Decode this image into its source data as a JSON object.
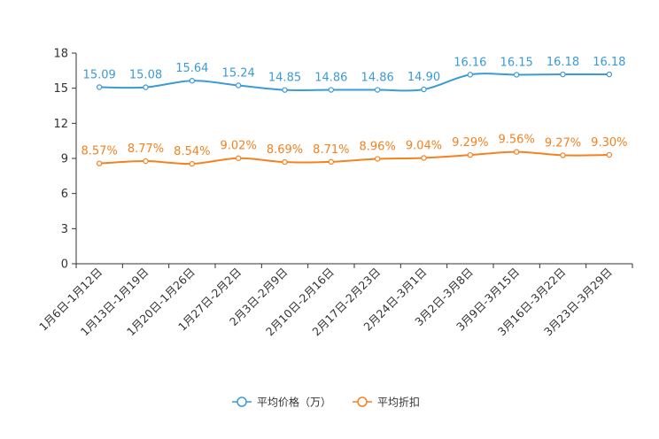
{
  "chart_data": {
    "type": "line",
    "title": "",
    "xlabel": "",
    "ylabel": "",
    "ylim": [
      0,
      18
    ],
    "yticks": [
      0,
      3,
      6,
      9,
      12,
      15,
      18
    ],
    "grid": false,
    "legend_position": "bottom-center",
    "categories": [
      "1月6日-1月12日",
      "1月13日-1月19日",
      "1月20日-1月26日",
      "1月27日-2月2日",
      "2月3日-2月9日",
      "2月10日-2月16日",
      "2月17日-2月23日",
      "2月24日-3月1日",
      "3月2日-3月8日",
      "3月9日-3月15日",
      "3月16日-3月22日",
      "3月23日-3月29日"
    ],
    "series": [
      {
        "name": "平均价格（万）",
        "color": "#3a9bd5",
        "values": [
          15.09,
          15.08,
          15.64,
          15.24,
          14.85,
          14.86,
          14.86,
          14.9,
          16.16,
          16.15,
          16.18,
          16.18
        ],
        "labels": [
          "15.09",
          "15.08",
          "15.64",
          "15.24",
          "14.85",
          "14.86",
          "14.86",
          "14.90",
          "16.16",
          "16.15",
          "16.18",
          "16.18"
        ]
      },
      {
        "name": "平均折扣",
        "color": "#f5811f",
        "values": [
          8.57,
          8.77,
          8.54,
          9.02,
          8.69,
          8.71,
          8.96,
          9.04,
          9.29,
          9.56,
          9.27,
          9.3
        ],
        "labels": [
          "8.57%",
          "8.77%",
          "8.54%",
          "9.02%",
          "8.69%",
          "8.71%",
          "8.96%",
          "9.04%",
          "9.29%",
          "9.56%",
          "9.27%",
          "9.30%"
        ]
      }
    ]
  }
}
